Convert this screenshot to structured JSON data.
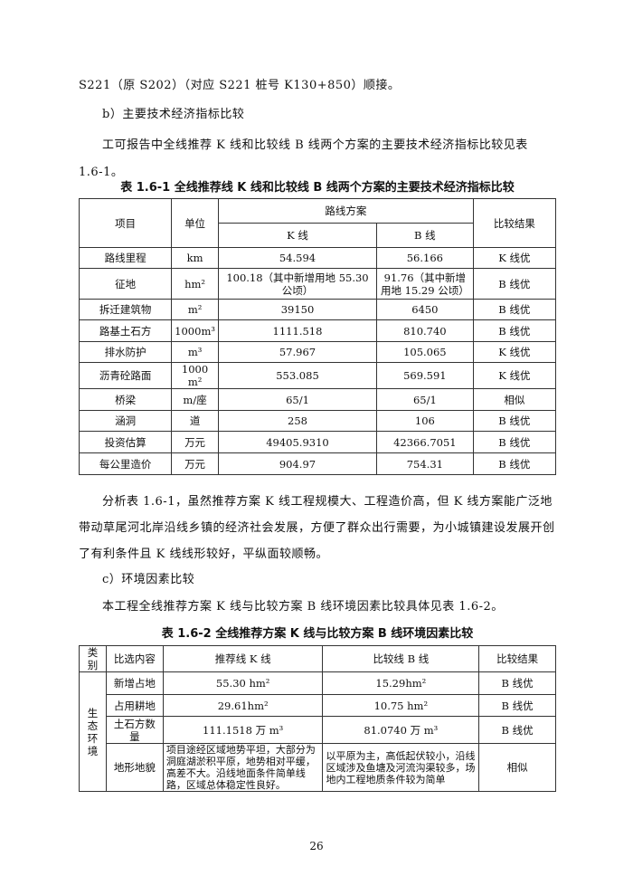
{
  "paragraphs": {
    "p1": "S221（原 S202）（对应 S221 桩号 K130+850）顺接。",
    "p2": "b）主要技术经济指标比较",
    "p3": "工可报告中全线推荐 K 线和比较线 B 线两个方案的主要技术经济指标比较见表 1.6-1。",
    "p4": "分析表 1.6-1，虽然推荐方案 K 线工程规模大、工程造价高，但 K 线方案能广泛地带动草尾河北岸沿线乡镇的经济社会发展，方便了群众出行需要，为小城镇建设发展开创了有利条件且 K 线线形较好，平纵面较顺畅。",
    "p5": "c）环境因素比较",
    "p6": "本工程全线推荐方案 K 线与比较方案 B 线环境因素比较具体见表 1.6-2。"
  },
  "table1": {
    "caption": "表 1.6-1 全线推荐线 K 线和比较线 B 线两个方案的主要技术经济指标比较",
    "headers": {
      "item": "项目",
      "unit": "单位",
      "route": "路线方案",
      "k": "K 线",
      "b": "B 线",
      "result": "比较结果"
    },
    "rows": [
      {
        "item": "路线里程",
        "unit": "km",
        "k": "54.594",
        "b": "56.166",
        "result": "K 线优"
      },
      {
        "item": "征地",
        "unit": "hm²",
        "k": "100.18（其中新增用地 55.30 公顷）",
        "b": "91.76（其中新增用地 15.29 公顷）",
        "result": "B 线优"
      },
      {
        "item": "拆迁建筑物",
        "unit": "m²",
        "k": "39150",
        "b": "6450",
        "result": "B 线优"
      },
      {
        "item": "路基土石方",
        "unit": "1000m³",
        "k": "1111.518",
        "b": "810.740",
        "result": "B 线优"
      },
      {
        "item": "排水防护",
        "unit": "m³",
        "k": "57.967",
        "b": "105.065",
        "result": "K 线优"
      },
      {
        "item": "沥青砼路面",
        "unit": "1000 m²",
        "k": "553.085",
        "b": "569.591",
        "result": "K 线优"
      },
      {
        "item": "桥梁",
        "unit": "m/座",
        "k": "65/1",
        "b": "65/1",
        "result": "相似"
      },
      {
        "item": "涵洞",
        "unit": "道",
        "k": "258",
        "b": "106",
        "result": "B 线优"
      },
      {
        "item": "投资估算",
        "unit": "万元",
        "k": "49405.9310",
        "b": "42366.7051",
        "result": "B 线优"
      },
      {
        "item": "每公里造价",
        "unit": "万元",
        "k": "904.97",
        "b": "754.31",
        "result": "B 线优"
      }
    ]
  },
  "table2": {
    "caption": "表 1.6-2 全线推荐方案 K 线与比较方案 B 线环境因素比较",
    "headers": {
      "category": "类别",
      "content": "比选内容",
      "k": "推荐线 K 线",
      "b": "比较线 B 线",
      "result": "比较结果"
    },
    "category": "生态环境",
    "rows": [
      {
        "content": "新增占地",
        "k": "55.30 hm²",
        "b": "15.29hm²",
        "result": "B 线优"
      },
      {
        "content": "占用耕地",
        "k": "29.61hm²",
        "b": "10.75 hm²",
        "result": "B 线优"
      },
      {
        "content": "土石方数量",
        "k": "111.1518 万 m³",
        "b": "81.0740 万 m³",
        "result": "B 线优"
      },
      {
        "content": "地形地貌",
        "k": "项目途经区域地势平坦，大部分为洞庭湖淤积平原，地势相对平缓，高差不大。沿线地面条件简单线路，区域总体稳定性良好。",
        "b": "以平原为主，高低起伏较小，沿线区域涉及鱼塘及河流沟渠较多，场地内工程地质条件较为简单",
        "result": "相似"
      }
    ]
  },
  "page_number": "26"
}
